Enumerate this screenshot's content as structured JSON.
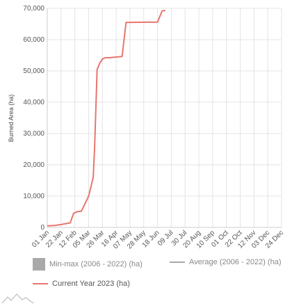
{
  "chart_data": {
    "type": "line",
    "ylabel": "Burned Area (ha)",
    "ylim": [
      0,
      70000
    ],
    "y_ticks": [
      "0",
      "10,000",
      "20,000",
      "30,000",
      "40,000",
      "50,000",
      "60,000",
      "70,000"
    ],
    "x_tick_labels": [
      "01 Jan",
      "22 Jan",
      "12 Feb",
      "05 Mar",
      "26 Mar",
      "16 Apr",
      "07 May",
      "28 May",
      "18 Jun",
      "09 Jul",
      "30 Jul",
      "20 Aug",
      "10 Sep",
      "01 Oct",
      "22 Oct",
      "12 Nov",
      "03 Dec",
      "24 Dec"
    ],
    "grid": true,
    "series": [
      {
        "name": "Current Year 2023 (ha)",
        "color": "#e8756b",
        "points": [
          [
            "01 Jan",
            500
          ],
          [
            "12 Jan",
            600
          ],
          [
            "22 Jan",
            900
          ],
          [
            "01 Feb",
            1300
          ],
          [
            "05 Feb",
            1500
          ],
          [
            "10 Feb",
            4500
          ],
          [
            "15 Feb",
            5000
          ],
          [
            "22 Feb",
            5200
          ],
          [
            "05 Mar",
            10000
          ],
          [
            "12 Mar",
            16000
          ],
          [
            "14 Mar",
            25000
          ],
          [
            "18 Mar",
            50500
          ],
          [
            "22 Mar",
            52500
          ],
          [
            "26 Mar",
            53800
          ],
          [
            "30 Mar",
            54200
          ],
          [
            "08 Apr",
            54300
          ],
          [
            "25 Apr",
            54600
          ],
          [
            "01 May",
            65500
          ],
          [
            "18 Jun",
            65600
          ],
          [
            "25 Jun",
            69200
          ],
          [
            "30 Jun",
            69300
          ]
        ]
      }
    ],
    "legend": {
      "position": "bottom",
      "items": [
        {
          "name": "Min-max (2006 - 2022) (ha)",
          "color": "#a9a9a9",
          "kind": "area"
        },
        {
          "name": "Average (2006 - 2022) (ha)",
          "color": "#a9a9a9",
          "kind": "line"
        },
        {
          "name": "Current Year 2023 (ha)",
          "color": "#e8756b",
          "kind": "line"
        }
      ]
    }
  },
  "logo": {
    "icon": "mountain-logo-icon"
  }
}
